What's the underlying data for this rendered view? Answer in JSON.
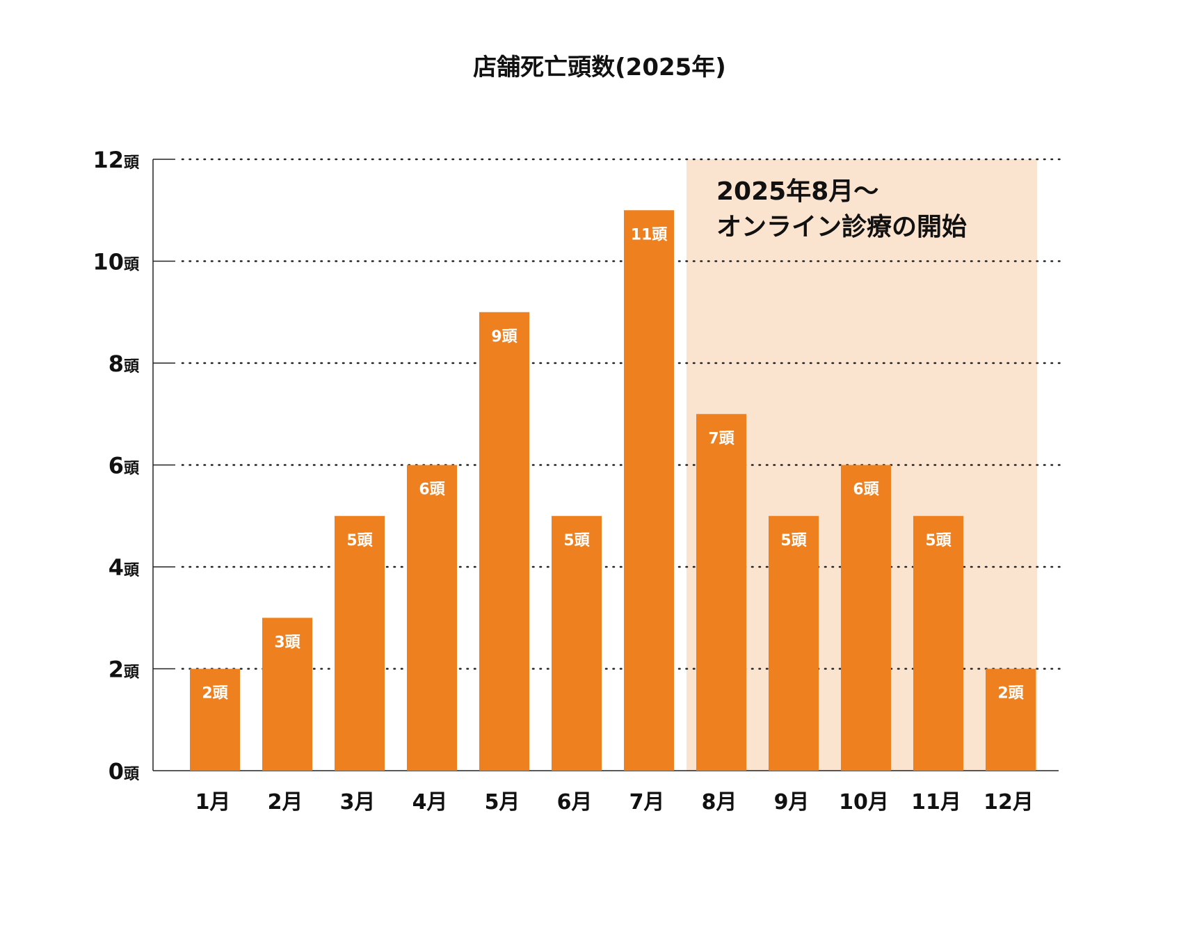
{
  "chart_data": {
    "type": "bar",
    "title": "店舗死亡頭数(2025年)",
    "categories": [
      "1月",
      "2月",
      "3月",
      "4月",
      "5月",
      "6月",
      "7月",
      "8月",
      "9月",
      "10月",
      "11月",
      "12月"
    ],
    "values": [
      2,
      3,
      5,
      6,
      9,
      5,
      11,
      7,
      5,
      6,
      5,
      2
    ],
    "data_labels": [
      "2頭",
      "3頭",
      "5頭",
      "6頭",
      "9頭",
      "5頭",
      "11頭",
      "7頭",
      "5頭",
      "6頭",
      "5頭",
      "2頭"
    ],
    "y_ticks": [
      {
        "num": "0",
        "unit": "頭"
      },
      {
        "num": "2",
        "unit": "頭"
      },
      {
        "num": "4",
        "unit": "頭"
      },
      {
        "num": "6",
        "unit": "頭"
      },
      {
        "num": "8",
        "unit": "頭"
      },
      {
        "num": "10",
        "unit": "頭"
      },
      {
        "num": "12",
        "unit": "頭"
      }
    ],
    "ylim": [
      0,
      12
    ],
    "grid": "dotted horizontal",
    "highlight": {
      "from": "8月",
      "to": "12月",
      "lines": [
        "2025年8月〜",
        "オンライン診療の開始"
      ]
    },
    "colors": {
      "bar": "#EE801F",
      "highlight": "#FBE4CF",
      "text": "#111111"
    }
  }
}
